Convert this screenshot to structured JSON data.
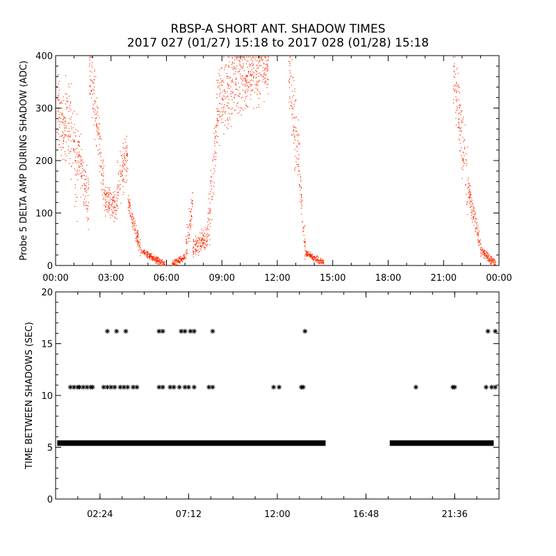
{
  "figure": {
    "title_line1": "RBSP-A SHORT ANT. SHADOW TIMES",
    "title_line2": "2017 027 (01/27) 15:18 to 2017 028 (01/28) 15:18"
  },
  "chart_data": [
    {
      "type": "scatter",
      "ylabel": "Probe 5 DELTA AMP DURING SHADOW (ADC)",
      "xlabel": "",
      "xlim": [
        0,
        24
      ],
      "ylim": [
        0,
        400
      ],
      "x_tick_labels": [
        "00:00",
        "03:00",
        "06:00",
        "09:00",
        "12:00",
        "15:00",
        "18:00",
        "21:00",
        "00:00"
      ],
      "y_ticks": [
        0,
        100,
        200,
        300,
        400
      ],
      "color": "#ff2a00",
      "grid": false,
      "segments": [
        {
          "x_start": 0.0,
          "x_end": 0.5,
          "y_start": 320,
          "y_end": 250,
          "spread": 90
        },
        {
          "x_start": 0.5,
          "x_end": 1.2,
          "y_start": 300,
          "y_end": 180,
          "spread": 110
        },
        {
          "x_start": 1.2,
          "x_end": 1.8,
          "y_start": 220,
          "y_end": 110,
          "spread": 70
        },
        {
          "x_start": 1.8,
          "x_end": 2.3,
          "y_start": 380,
          "y_end": 250,
          "spread": 90
        },
        {
          "x_start": 2.3,
          "x_end": 2.6,
          "y_start": 250,
          "y_end": 160,
          "spread": 60
        },
        {
          "x_start": 2.6,
          "x_end": 3.3,
          "y_start": 130,
          "y_end": 110,
          "spread": 35
        },
        {
          "x_start": 3.3,
          "x_end": 3.9,
          "y_start": 150,
          "y_end": 210,
          "spread": 60
        },
        {
          "x_start": 3.9,
          "x_end": 4.6,
          "y_start": 120,
          "y_end": 30,
          "spread": 20
        },
        {
          "x_start": 4.6,
          "x_end": 5.9,
          "y_start": 28,
          "y_end": 2,
          "spread": 8
        },
        {
          "x_start": 6.3,
          "x_end": 7.0,
          "y_start": 3,
          "y_end": 18,
          "spread": 8
        },
        {
          "x_start": 7.0,
          "x_end": 7.4,
          "y_start": 20,
          "y_end": 120,
          "spread": 40
        },
        {
          "x_start": 7.4,
          "x_end": 8.2,
          "y_start": 35,
          "y_end": 55,
          "spread": 25
        },
        {
          "x_start": 8.2,
          "x_end": 8.7,
          "y_start": 60,
          "y_end": 260,
          "spread": 80
        },
        {
          "x_start": 8.7,
          "x_end": 10.2,
          "y_start": 300,
          "y_end": 380,
          "spread": 90
        },
        {
          "x_start": 10.2,
          "x_end": 11.5,
          "y_start": 350,
          "y_end": 380,
          "spread": 70
        },
        {
          "x_start": 12.6,
          "x_end": 13.2,
          "y_start": 360,
          "y_end": 180,
          "spread": 90
        },
        {
          "x_start": 13.2,
          "x_end": 13.5,
          "y_start": 160,
          "y_end": 40,
          "spread": 40
        },
        {
          "x_start": 13.5,
          "x_end": 14.5,
          "y_start": 25,
          "y_end": 5,
          "spread": 8
        },
        {
          "x_start": 21.5,
          "x_end": 22.3,
          "y_start": 380,
          "y_end": 150,
          "spread": 80
        },
        {
          "x_start": 22.3,
          "x_end": 23.0,
          "y_start": 150,
          "y_end": 30,
          "spread": 30
        },
        {
          "x_start": 23.0,
          "x_end": 23.8,
          "y_start": 30,
          "y_end": 2,
          "spread": 10
        }
      ]
    },
    {
      "type": "scatter",
      "ylabel": "TIME BETWEEN SHADOWS (SEC)",
      "xlabel": "",
      "xlim": [
        0,
        24
      ],
      "ylim": [
        0,
        20
      ],
      "x_tick_labels": [
        "02:24",
        "07:12",
        "12:00",
        "16:48",
        "21:36"
      ],
      "y_ticks": [
        0,
        5,
        10,
        15,
        20
      ],
      "marker": "asterisk",
      "color": "#000000",
      "grid": false,
      "bands": [
        {
          "y": 5.4,
          "x_ranges": [
            [
              0.2,
              5.9
            ],
            [
              6.1,
              14.5
            ],
            [
              18.2,
              23.6
            ]
          ]
        }
      ],
      "points_10_8": [
        0.8,
        1.0,
        1.2,
        1.3,
        1.5,
        1.7,
        1.9,
        2.0,
        2.6,
        2.8,
        3.0,
        3.2,
        3.5,
        3.7,
        3.9,
        4.2,
        4.4,
        5.6,
        5.8,
        6.2,
        6.4,
        6.7,
        7.0,
        7.2,
        7.5,
        8.3,
        8.5,
        11.8,
        12.1,
        13.3,
        13.4,
        19.5,
        21.5,
        21.6,
        23.3,
        23.6,
        23.8
      ],
      "points_16_2": [
        2.8,
        3.3,
        3.8,
        5.6,
        5.8,
        6.8,
        7.0,
        7.3,
        7.5,
        8.5,
        13.5,
        23.4,
        23.8
      ]
    }
  ]
}
